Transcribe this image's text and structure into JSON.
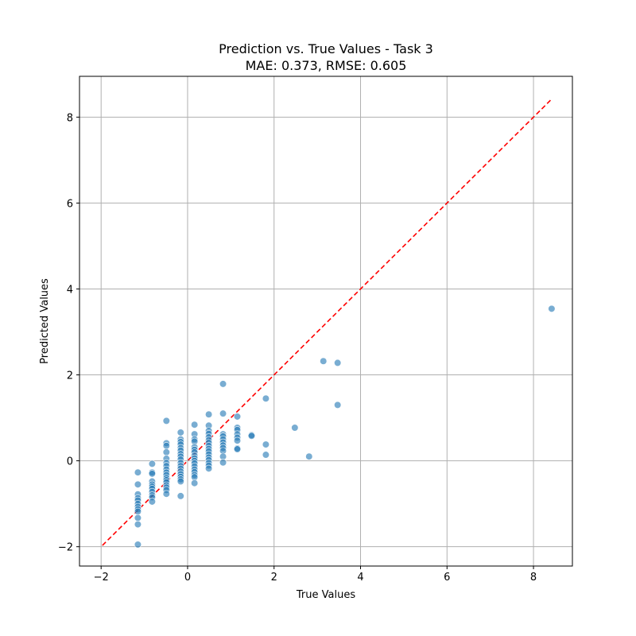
{
  "chart_data": {
    "type": "scatter",
    "title": "Prediction vs. True Values - Task 3",
    "subtitle": "MAE: 0.373, RMSE: 0.605",
    "xlabel": "True Values",
    "ylabel": "Predicted Values",
    "xlim": [
      -2.5,
      8.9
    ],
    "ylim": [
      -2.45,
      8.95
    ],
    "xticks": [
      -2,
      0,
      2,
      4,
      6,
      8
    ],
    "yticks": [
      -2,
      0,
      2,
      4,
      6,
      8
    ],
    "xtick_labels": [
      "−2",
      "0",
      "2",
      "4",
      "6",
      "8"
    ],
    "ytick_labels": [
      "−2",
      "0",
      "2",
      "4",
      "6",
      "8"
    ],
    "grid": true,
    "colors": {
      "points": "#1f77b4",
      "reference_line": "#ff0000",
      "grid": "#b0b0b0"
    },
    "reference_line": {
      "style": "dashed",
      "x": [
        -1.97,
        8.4
      ],
      "y": [
        -1.97,
        8.4
      ]
    },
    "points": [
      {
        "x": -1.15,
        "y": -0.27
      },
      {
        "x": -1.15,
        "y": -0.55
      },
      {
        "x": -1.15,
        "y": -0.78
      },
      {
        "x": -1.15,
        "y": -0.87
      },
      {
        "x": -1.15,
        "y": -0.92
      },
      {
        "x": -1.15,
        "y": -1.0
      },
      {
        "x": -1.15,
        "y": -1.07
      },
      {
        "x": -1.15,
        "y": -1.13
      },
      {
        "x": -1.15,
        "y": -1.18
      },
      {
        "x": -1.15,
        "y": -1.33
      },
      {
        "x": -1.15,
        "y": -1.48
      },
      {
        "x": -1.15,
        "y": -1.95
      },
      {
        "x": -0.82,
        "y": -0.07
      },
      {
        "x": -0.82,
        "y": -0.27
      },
      {
        "x": -0.82,
        "y": -0.3
      },
      {
        "x": -0.82,
        "y": -0.48
      },
      {
        "x": -0.82,
        "y": -0.55
      },
      {
        "x": -0.82,
        "y": -0.6
      },
      {
        "x": -0.82,
        "y": -0.65
      },
      {
        "x": -0.82,
        "y": -0.72
      },
      {
        "x": -0.82,
        "y": -0.8
      },
      {
        "x": -0.82,
        "y": -0.85
      },
      {
        "x": -0.82,
        "y": -0.95
      },
      {
        "x": -0.49,
        "y": 0.93
      },
      {
        "x": -0.49,
        "y": 0.41
      },
      {
        "x": -0.49,
        "y": 0.35
      },
      {
        "x": -0.49,
        "y": 0.2
      },
      {
        "x": -0.49,
        "y": 0.05
      },
      {
        "x": -0.49,
        "y": -0.05
      },
      {
        "x": -0.49,
        "y": -0.12
      },
      {
        "x": -0.49,
        "y": -0.2
      },
      {
        "x": -0.49,
        "y": -0.27
      },
      {
        "x": -0.49,
        "y": -0.33
      },
      {
        "x": -0.49,
        "y": -0.4
      },
      {
        "x": -0.49,
        "y": -0.45
      },
      {
        "x": -0.49,
        "y": -0.5
      },
      {
        "x": -0.49,
        "y": -0.57
      },
      {
        "x": -0.49,
        "y": -0.62
      },
      {
        "x": -0.49,
        "y": -0.68
      },
      {
        "x": -0.49,
        "y": -0.77
      },
      {
        "x": -0.16,
        "y": 0.66
      },
      {
        "x": -0.16,
        "y": 0.5
      },
      {
        "x": -0.16,
        "y": 0.44
      },
      {
        "x": -0.16,
        "y": 0.38
      },
      {
        "x": -0.16,
        "y": 0.3
      },
      {
        "x": -0.16,
        "y": 0.24
      },
      {
        "x": -0.16,
        "y": 0.16
      },
      {
        "x": -0.16,
        "y": 0.1
      },
      {
        "x": -0.16,
        "y": 0.03
      },
      {
        "x": -0.16,
        "y": -0.05
      },
      {
        "x": -0.16,
        "y": -0.12
      },
      {
        "x": -0.16,
        "y": -0.18
      },
      {
        "x": -0.16,
        "y": -0.25
      },
      {
        "x": -0.16,
        "y": -0.31
      },
      {
        "x": -0.16,
        "y": -0.37
      },
      {
        "x": -0.16,
        "y": -0.43
      },
      {
        "x": -0.16,
        "y": -0.48
      },
      {
        "x": -0.16,
        "y": -0.82
      },
      {
        "x": 0.16,
        "y": 0.84
      },
      {
        "x": 0.16,
        "y": 0.62
      },
      {
        "x": 0.16,
        "y": 0.5
      },
      {
        "x": 0.16,
        "y": 0.45
      },
      {
        "x": 0.16,
        "y": 0.32
      },
      {
        "x": 0.16,
        "y": 0.26
      },
      {
        "x": 0.16,
        "y": 0.2
      },
      {
        "x": 0.16,
        "y": 0.12
      },
      {
        "x": 0.16,
        "y": 0.06
      },
      {
        "x": 0.16,
        "y": 0.0
      },
      {
        "x": 0.16,
        "y": -0.06
      },
      {
        "x": 0.16,
        "y": -0.13
      },
      {
        "x": 0.16,
        "y": -0.2
      },
      {
        "x": 0.16,
        "y": -0.26
      },
      {
        "x": 0.16,
        "y": -0.33
      },
      {
        "x": 0.16,
        "y": -0.38
      },
      {
        "x": 0.16,
        "y": -0.52
      },
      {
        "x": 0.49,
        "y": 1.08
      },
      {
        "x": 0.49,
        "y": 0.82
      },
      {
        "x": 0.49,
        "y": 0.7
      },
      {
        "x": 0.49,
        "y": 0.63
      },
      {
        "x": 0.49,
        "y": 0.55
      },
      {
        "x": 0.49,
        "y": 0.48
      },
      {
        "x": 0.49,
        "y": 0.42
      },
      {
        "x": 0.49,
        "y": 0.35
      },
      {
        "x": 0.49,
        "y": 0.28
      },
      {
        "x": 0.49,
        "y": 0.22
      },
      {
        "x": 0.49,
        "y": 0.15
      },
      {
        "x": 0.49,
        "y": 0.08
      },
      {
        "x": 0.49,
        "y": 0.02
      },
      {
        "x": 0.49,
        "y": -0.05
      },
      {
        "x": 0.49,
        "y": -0.11
      },
      {
        "x": 0.49,
        "y": -0.18
      },
      {
        "x": 0.82,
        "y": 1.79
      },
      {
        "x": 0.82,
        "y": 1.1
      },
      {
        "x": 0.82,
        "y": 0.62
      },
      {
        "x": 0.82,
        "y": 0.57
      },
      {
        "x": 0.82,
        "y": 0.5
      },
      {
        "x": 0.82,
        "y": 0.43
      },
      {
        "x": 0.82,
        "y": 0.36
      },
      {
        "x": 0.82,
        "y": 0.3
      },
      {
        "x": 0.82,
        "y": 0.23
      },
      {
        "x": 0.82,
        "y": 0.1
      },
      {
        "x": 0.82,
        "y": -0.04
      },
      {
        "x": 1.15,
        "y": 1.03
      },
      {
        "x": 1.15,
        "y": 0.77
      },
      {
        "x": 1.15,
        "y": 0.72
      },
      {
        "x": 1.15,
        "y": 0.62
      },
      {
        "x": 1.15,
        "y": 0.54
      },
      {
        "x": 1.15,
        "y": 0.47
      },
      {
        "x": 1.15,
        "y": 0.29
      },
      {
        "x": 1.15,
        "y": 0.27
      },
      {
        "x": 1.48,
        "y": 0.6
      },
      {
        "x": 1.48,
        "y": 0.58
      },
      {
        "x": 1.81,
        "y": 1.45
      },
      {
        "x": 1.81,
        "y": 0.38
      },
      {
        "x": 1.81,
        "y": 0.14
      },
      {
        "x": 2.48,
        "y": 0.77
      },
      {
        "x": 2.81,
        "y": 0.1
      },
      {
        "x": 3.14,
        "y": 2.32
      },
      {
        "x": 3.47,
        "y": 2.28
      },
      {
        "x": 3.47,
        "y": 1.3
      },
      {
        "x": 8.42,
        "y": 3.54
      }
    ]
  }
}
